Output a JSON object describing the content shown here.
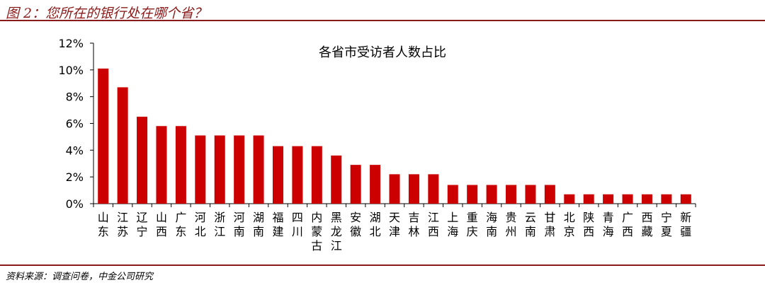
{
  "figure_title": "图 2：您所在的银行处在哪个省？",
  "source": "资料来源：调查问卷，中金公司研究",
  "colors": {
    "bar": "#cc0000",
    "rule": "#8b1a1a"
  },
  "chart_data": {
    "type": "bar",
    "title": "各省市受访者人数占比",
    "xlabel": "",
    "ylabel": "",
    "ylim": [
      0,
      12
    ],
    "ytick_labels": [
      "0%",
      "2%",
      "4%",
      "6%",
      "8%",
      "10%",
      "12%"
    ],
    "grid": false,
    "categories": [
      "山东",
      "江苏",
      "辽宁",
      "山西",
      "广东",
      "河北",
      "浙江",
      "河南",
      "湖南",
      "福建",
      "四川",
      "内蒙古",
      "黑龙江",
      "安徽",
      "湖北",
      "天津",
      "吉林",
      "江西",
      "上海",
      "重庆",
      "海南",
      "贵州",
      "云南",
      "甘肃",
      "北京",
      "陕西",
      "青海",
      "广西",
      "西藏",
      "宁夏",
      "新疆"
    ],
    "values": [
      10.1,
      8.7,
      6.5,
      5.8,
      5.8,
      5.1,
      5.1,
      5.1,
      5.1,
      4.3,
      4.3,
      4.3,
      3.6,
      2.9,
      2.9,
      2.2,
      2.2,
      2.2,
      1.4,
      1.4,
      1.4,
      1.4,
      1.4,
      1.4,
      0.7,
      0.7,
      0.7,
      0.7,
      0.7,
      0.7,
      0.7
    ]
  }
}
